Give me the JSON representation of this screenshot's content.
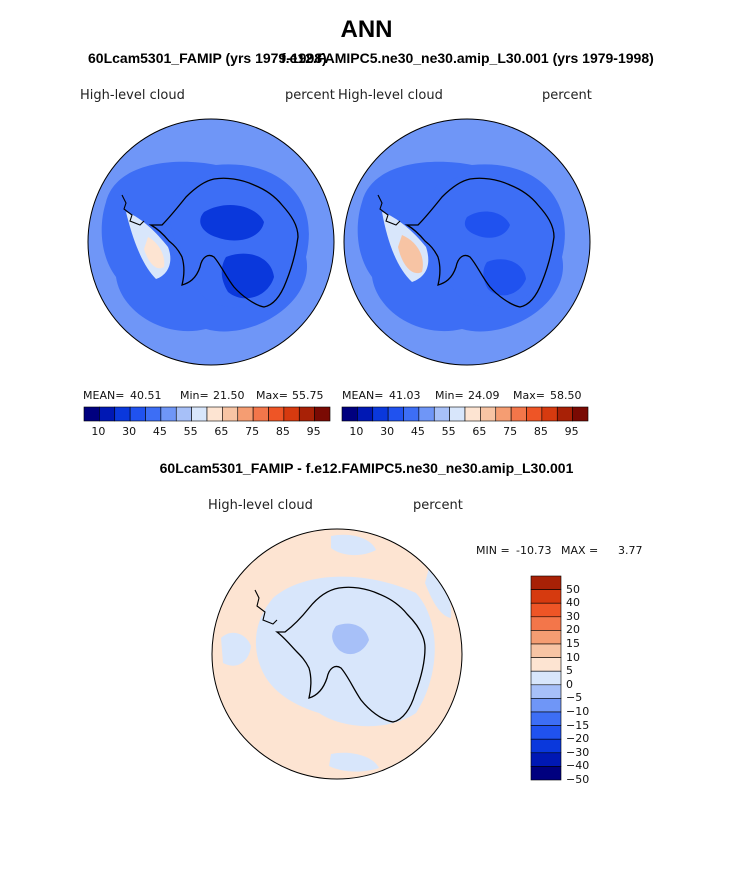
{
  "page": {
    "title": "ANN",
    "case1_title": "60Lcam5301_FAMIP (yrs 1979-1998)",
    "case2_title": "f.e12.FAMIPC5.ne30_ne30.amip_L30.001 (yrs 1979-1998)",
    "diff_title": "60Lcam5301_FAMIP - f.e12.FAMIPC5.ne30_ne30.amip_L30.001"
  },
  "palettes": {
    "abs_colors": [
      "#00007f",
      "#0018b4",
      "#0a38dc",
      "#2052ef",
      "#3d6ef5",
      "#6f96f7",
      "#a7c0f8",
      "#d8e6fb",
      "#fde4d2",
      "#f7c4a4",
      "#f59d72",
      "#f3764a",
      "#ee5526",
      "#d63a0f",
      "#a82106",
      "#7a0a03"
    ],
    "diff_colors": [
      "#00007f",
      "#0018b4",
      "#0a38dc",
      "#2052ef",
      "#3d6ef5",
      "#6f96f7",
      "#a7c0f8",
      "#d8e6fb",
      "#fde4d2",
      "#f7c4a4",
      "#f59d72",
      "#f3764a",
      "#ee5526",
      "#d63a0f",
      "#a82106"
    ],
    "coast": "#000000"
  },
  "chart_data": [
    {
      "type": "heatmap",
      "projection": "south-polar-stereographic",
      "variable": "High-level cloud",
      "units": "percent",
      "case": "60Lcam5301_FAMIP (yrs 1979-1998)",
      "stats": {
        "mean_label": "MEAN=",
        "mean": "40.51",
        "min_label": "Min=",
        "min": "21.50",
        "max_label": "Max=",
        "max": "55.75"
      },
      "levels": [
        10,
        15,
        20,
        25,
        30,
        35,
        40,
        45,
        50,
        55,
        60,
        65,
        70,
        75,
        80,
        85,
        90,
        95
      ],
      "tick_labels": [
        "10",
        "30",
        "45",
        "55",
        "65",
        "75",
        "85",
        "95"
      ],
      "regions": {
        "ocean": 38,
        "coastal_band": 32,
        "antarctic_interior": 30,
        "interior_low": 24,
        "peninsula": 45,
        "weddell_sea": 50
      }
    },
    {
      "type": "heatmap",
      "projection": "south-polar-stereographic",
      "variable": "High-level cloud",
      "units": "percent",
      "case": "f.e12.FAMIPC5.ne30_ne30.amip_L30.001 (yrs 1979-1998)",
      "stats": {
        "mean_label": "MEAN=",
        "mean": "41.03",
        "min_label": "Min=",
        "min": "24.09",
        "max_label": "Max=",
        "max": "58.50"
      },
      "levels": [
        10,
        15,
        20,
        25,
        30,
        35,
        40,
        45,
        50,
        55,
        60,
        65,
        70,
        75,
        80,
        85,
        90,
        95
      ],
      "tick_labels": [
        "10",
        "30",
        "45",
        "55",
        "65",
        "75",
        "85",
        "95"
      ],
      "regions": {
        "ocean": 38,
        "coastal_band": 33,
        "antarctic_interior": 33,
        "interior_low": 25,
        "peninsula": 45,
        "weddell_sea": 55
      }
    },
    {
      "type": "heatmap",
      "projection": "south-polar-stereographic",
      "variable": "High-level cloud",
      "units": "percent",
      "case": "60Lcam5301_FAMIP - f.e12.FAMIPC5.ne30_ne30.amip_L30.001",
      "stats": {
        "min_label": "MIN =",
        "min": "-10.73",
        "max_label": "MAX =",
        "max": "3.77"
      },
      "levels": [
        -50,
        -40,
        -30,
        -20,
        -15,
        -10,
        -5,
        0,
        5,
        10,
        15,
        20,
        30,
        40,
        50
      ],
      "tick_labels": [
        "50",
        "40",
        "30",
        "20",
        "15",
        "10",
        "5",
        "0",
        "−5",
        "−10",
        "−15",
        "−20",
        "−30",
        "−40",
        "−50"
      ],
      "regions": {
        "background": 2,
        "antarctic_interior": -3,
        "interior_low": -7,
        "ocean_patches": -2
      }
    }
  ]
}
